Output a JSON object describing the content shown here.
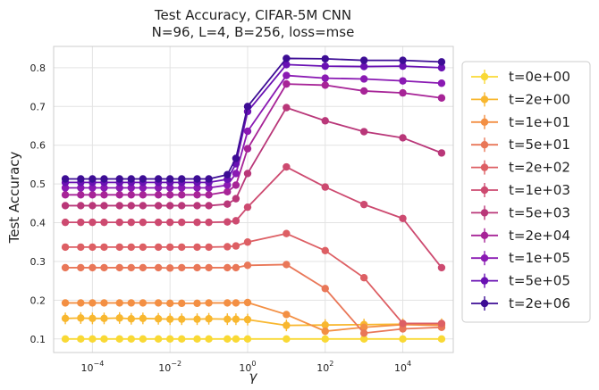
{
  "chart_data": {
    "type": "line",
    "title_lines": [
      "Test Accuracy, CIFAR-5M CNN",
      "N=96, L=4, B=256, loss=mse"
    ],
    "xlabel": "γ",
    "ylabel": "Test Accuracy",
    "xscale": "log",
    "xlim": [
      1e-05,
      200000
    ],
    "ylim": [
      0.065,
      0.855
    ],
    "grid": true,
    "legend_position": "outside-right",
    "x_ticks": [
      {
        "value": 0.0001,
        "label_base": "10",
        "label_exp": "−4"
      },
      {
        "value": 0.01,
        "label_base": "10",
        "label_exp": "−2"
      },
      {
        "value": 1,
        "label_base": "10",
        "label_exp": "0"
      },
      {
        "value": 100,
        "label_base": "10",
        "label_exp": "2"
      },
      {
        "value": 10000,
        "label_base": "10",
        "label_exp": "4"
      }
    ],
    "y_ticks": [
      {
        "value": 0.1,
        "label": "0.1"
      },
      {
        "value": 0.2,
        "label": "0.2"
      },
      {
        "value": 0.3,
        "label": "0.3"
      },
      {
        "value": 0.4,
        "label": "0.4"
      },
      {
        "value": 0.5,
        "label": "0.5"
      },
      {
        "value": 0.6,
        "label": "0.6"
      },
      {
        "value": 0.7,
        "label": "0.7"
      },
      {
        "value": 0.8,
        "label": "0.8"
      }
    ],
    "x": [
      2e-05,
      5e-05,
      0.0001,
      0.0002,
      0.0005,
      0.001,
      0.002,
      0.005,
      0.01,
      0.02,
      0.05,
      0.1,
      0.3,
      0.5,
      1,
      2,
      10,
      100,
      1000,
      10000,
      100000
    ],
    "series": [
      {
        "name": "t=0e+00",
        "color": "#f9d935",
        "error": 0.004,
        "values": [
          0.1,
          0.1,
          0.1,
          0.1,
          0.1,
          0.1,
          0.1,
          0.1,
          0.1,
          0.1,
          0.1,
          0.1,
          0.1,
          0.1,
          0.1,
          null,
          0.1,
          0.1,
          0.1,
          0.1,
          0.1
        ]
      },
      {
        "name": "t=2e+00",
        "color": "#f8b72f",
        "error": 0.015,
        "values": [
          0.153,
          0.154,
          0.153,
          0.153,
          0.154,
          0.152,
          0.153,
          0.152,
          0.151,
          0.151,
          0.151,
          0.152,
          0.151,
          0.151,
          0.15,
          null,
          0.135,
          0.136,
          0.137,
          0.138,
          0.138
        ]
      },
      {
        "name": "t=1e+01",
        "color": "#f38f43",
        "error": 0.005,
        "values": [
          0.193,
          0.193,
          0.193,
          0.193,
          0.193,
          0.193,
          0.193,
          0.193,
          0.192,
          0.192,
          0.192,
          0.193,
          0.193,
          0.193,
          0.194,
          null,
          0.163,
          0.12,
          0.13,
          0.137,
          0.135
        ]
      },
      {
        "name": "t=5e+01",
        "color": "#e97758",
        "error": 0.004,
        "values": [
          0.284,
          0.284,
          0.284,
          0.284,
          0.284,
          0.284,
          0.284,
          0.284,
          0.283,
          0.284,
          0.284,
          0.284,
          0.284,
          0.284,
          0.29,
          null,
          0.292,
          0.23,
          0.115,
          0.126,
          0.13
        ]
      },
      {
        "name": "t=2e+02",
        "color": "#dd5f64",
        "error": 0.004,
        "values": [
          0.337,
          0.337,
          0.337,
          0.337,
          0.337,
          0.337,
          0.337,
          0.337,
          0.337,
          0.337,
          0.337,
          0.337,
          0.338,
          0.34,
          0.35,
          null,
          0.372,
          0.328,
          0.258,
          0.14,
          0.14
        ]
      },
      {
        "name": "t=1e+03",
        "color": "#cd4a70",
        "error": 0.004,
        "values": [
          0.401,
          0.401,
          0.401,
          0.401,
          0.401,
          0.401,
          0.401,
          0.401,
          0.401,
          0.401,
          0.401,
          0.401,
          0.402,
          0.405,
          0.44,
          null,
          0.544,
          0.492,
          0.447,
          0.411,
          0.284
        ]
      },
      {
        "name": "t=5e+03",
        "color": "#b93779",
        "error": 0.004,
        "values": [
          0.444,
          0.444,
          0.444,
          0.444,
          0.444,
          0.444,
          0.444,
          0.444,
          0.444,
          0.444,
          0.444,
          0.444,
          0.448,
          0.462,
          0.527,
          null,
          0.697,
          0.663,
          0.635,
          0.619,
          0.58
        ]
      },
      {
        "name": "t=2e+04",
        "color": "#a72497",
        "error": 0.004,
        "values": [
          0.472,
          0.472,
          0.472,
          0.472,
          0.472,
          0.472,
          0.472,
          0.472,
          0.472,
          0.472,
          0.472,
          0.472,
          0.48,
          0.497,
          0.591,
          null,
          0.758,
          0.755,
          0.74,
          0.735,
          0.722
        ]
      },
      {
        "name": "t=1e+05",
        "color": "#8a1ab3",
        "error": 0.004,
        "values": [
          0.49,
          0.49,
          0.49,
          0.49,
          0.49,
          0.49,
          0.49,
          0.49,
          0.49,
          0.49,
          0.49,
          0.49,
          0.497,
          0.527,
          0.636,
          null,
          0.78,
          0.773,
          0.771,
          0.766,
          0.76
        ]
      },
      {
        "name": "t=5e+05",
        "color": "#6911b3",
        "error": 0.004,
        "values": [
          0.504,
          0.504,
          0.504,
          0.504,
          0.504,
          0.504,
          0.504,
          0.504,
          0.504,
          0.504,
          0.504,
          0.504,
          0.512,
          0.552,
          0.687,
          null,
          0.808,
          0.804,
          0.803,
          0.804,
          0.8
        ]
      },
      {
        "name": "t=2e+06",
        "color": "#3d0d95",
        "error": 0.004,
        "values": [
          0.513,
          0.513,
          0.513,
          0.513,
          0.513,
          0.513,
          0.513,
          0.513,
          0.513,
          0.513,
          0.513,
          0.513,
          0.524,
          0.566,
          0.7,
          null,
          0.824,
          0.823,
          0.819,
          0.819,
          0.815
        ]
      }
    ]
  }
}
